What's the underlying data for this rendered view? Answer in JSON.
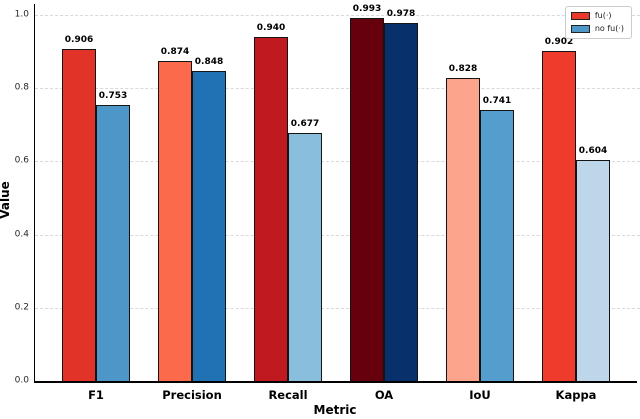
{
  "chart_data": {
    "type": "bar",
    "title": "",
    "xlabel": "Metric",
    "ylabel": "Value",
    "categories": [
      "F1",
      "Precision",
      "Recall",
      "OA",
      "IoU",
      "Kappa"
    ],
    "series": [
      {
        "name": "fu(·)",
        "legend_color": "#e8392b",
        "values": [
          0.906,
          0.874,
          0.94,
          0.993,
          0.828,
          0.902
        ],
        "colors": [
          "#e23328",
          "#fb6a4a",
          "#c01a20",
          "#67000d",
          "#fca58c",
          "#ef3b2c"
        ]
      },
      {
        "name": "no fu(·)",
        "legend_color": "#4f97c7",
        "values": [
          0.753,
          0.848,
          0.677,
          0.978,
          0.741,
          0.604
        ],
        "colors": [
          "#4d96c8",
          "#2171b5",
          "#89bedc",
          "#08306b",
          "#549ecd",
          "#bed6ea"
        ]
      }
    ],
    "ylim": [
      0.0,
      1.027
    ],
    "yticks": [
      0.0,
      0.2,
      0.4,
      0.6,
      0.8,
      1.0
    ],
    "ytick_format_decimals": 1,
    "value_label_decimals": 3,
    "grid": "horizontal dashed",
    "grid_color": "#d9d9d9",
    "bar_edge_color": "#141414",
    "background_color": "#ffffff",
    "legend_position": "upper right"
  }
}
